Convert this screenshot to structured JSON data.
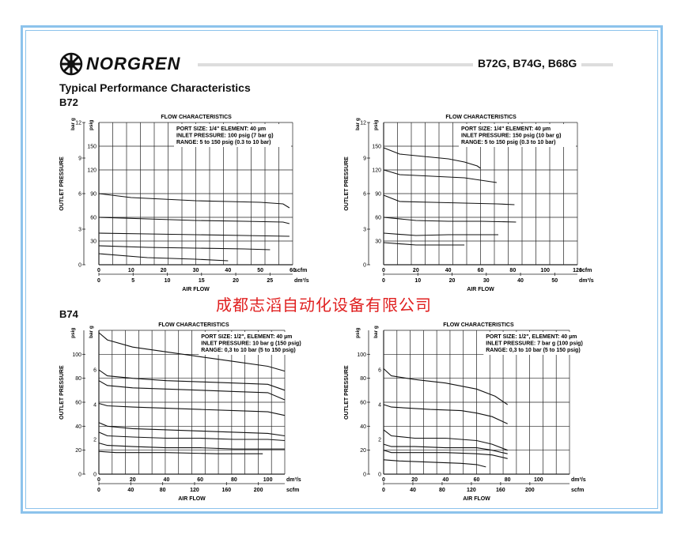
{
  "header": {
    "brand": "NORGREN",
    "models": "B72G, B74G, B68G",
    "title": "Typical Performance Characteristics"
  },
  "sections": {
    "b72": "B72",
    "b74": "B74"
  },
  "watermark": "成都志滔自动化设备有限公司",
  "colors": {
    "frame": "#8cc3ec",
    "watermark": "#e02020",
    "curve": "#111111"
  },
  "chart_data": [
    {
      "type": "line",
      "title": "FLOW CHARACTERISTICS",
      "annotation": [
        "PORT SIZE: 1/4\"      ELEMENT: 40 µm",
        "INLET PRESSURE: 100 psig (7 bar g)",
        "RANGE: 5 to 150 psig (0.3 to 10 bar)"
      ],
      "xlabel": "AIR FLOW",
      "ylabel": "OUTLET PRESSURE",
      "x_primary": {
        "unit": "scfm",
        "ticks": [
          "0",
          "10",
          "20",
          "30",
          "40",
          "50",
          "60"
        ],
        "max": 60
      },
      "x_secondary": {
        "unit": "dm³/s",
        "ticks": [
          "0",
          "5",
          "10",
          "15",
          "20",
          "25"
        ]
      },
      "y_left": {
        "unit": "bar g",
        "ticks": [
          "0",
          "3",
          "6",
          "9",
          "12"
        ],
        "max": 12
      },
      "y_right": {
        "unit": "psig",
        "ticks": [
          "30",
          "60",
          "90",
          "120",
          "150"
        ]
      },
      "ylim_psig": [
        0,
        180
      ],
      "series": [
        {
          "x": [
            0,
            10,
            20,
            30,
            40,
            50,
            57,
            59
          ],
          "y": [
            90,
            85,
            83,
            81,
            80,
            79,
            77,
            72
          ]
        },
        {
          "x": [
            0,
            15,
            30,
            45,
            57,
            59
          ],
          "y": [
            60,
            58,
            56,
            55,
            54,
            52
          ]
        },
        {
          "x": [
            0,
            15,
            30,
            45,
            59
          ],
          "y": [
            40,
            39,
            38,
            37,
            36
          ]
        },
        {
          "x": [
            0,
            15,
            30,
            45,
            53
          ],
          "y": [
            24,
            22,
            21,
            20,
            19
          ]
        },
        {
          "x": [
            0,
            15,
            30,
            40
          ],
          "y": [
            14,
            9,
            7,
            5
          ]
        }
      ]
    },
    {
      "type": "line",
      "title": "FLOW CHARACTERISTICS",
      "annotation": [
        "PORT SIZE: 1/4\"        ELEMENT: 40 µm",
        "INLET PRESSURE: 150 psig (10 bar g)",
        "RANGE: 5 to 150 psig (0.3 to 10 bar)"
      ],
      "xlabel": "AIR FLOW",
      "ylabel": "OUTLET PRESSURE",
      "x_primary": {
        "unit": "scfm",
        "ticks": [
          "0",
          "20",
          "40",
          "60",
          "80",
          "100",
          "120"
        ],
        "max": 120
      },
      "x_secondary": {
        "unit": "dm³/s",
        "ticks": [
          "0",
          "10",
          "20",
          "30",
          "40",
          "50"
        ]
      },
      "y_left": {
        "unit": "bar g",
        "ticks": [
          "0",
          "3",
          "6",
          "9",
          "12"
        ],
        "max": 12
      },
      "y_right": {
        "unit": "psig",
        "ticks": [
          "30",
          "60",
          "90",
          "120",
          "150"
        ]
      },
      "ylim_psig": [
        0,
        180
      ],
      "series": [
        {
          "x": [
            0,
            10,
            20,
            30,
            40,
            50,
            58,
            60
          ],
          "y": [
            148,
            140,
            138,
            136,
            134,
            130,
            125,
            122
          ]
        },
        {
          "x": [
            0,
            10,
            30,
            50,
            70
          ],
          "y": [
            120,
            114,
            112,
            110,
            104
          ]
        },
        {
          "x": [
            0,
            10,
            30,
            50,
            70,
            81
          ],
          "y": [
            88,
            80,
            79,
            78,
            77,
            76
          ]
        },
        {
          "x": [
            0,
            20,
            40,
            60,
            82
          ],
          "y": [
            60,
            56,
            55,
            55,
            54
          ]
        },
        {
          "x": [
            0,
            20,
            40,
            60,
            71
          ],
          "y": [
            40,
            37,
            38,
            38,
            38
          ]
        },
        {
          "x": [
            0,
            20,
            40,
            50
          ],
          "y": [
            28,
            25,
            25,
            25
          ]
        }
      ]
    },
    {
      "type": "line",
      "title": "FLOW CHARACTERISTICS",
      "annotation": [
        "PORT SIZE: 1/2\", ELEMENT: 40 µm",
        "INLET PRESSURE: 10 bar g (150 psig)",
        "RANGE: 0,3 to 10 bar (5 to 150 psig)"
      ],
      "xlabel": "AIR FLOW",
      "ylabel": "OUTLET PRESSURE",
      "x_primary": {
        "unit": "dm³/s",
        "ticks": [
          "0",
          "20",
          "40",
          "60",
          "80",
          "100"
        ],
        "max": 110
      },
      "x_secondary": {
        "unit": "scfm",
        "ticks": [
          "0",
          "40",
          "80",
          "120",
          "160",
          "200"
        ]
      },
      "y_left": {
        "unit": "psig",
        "ticks": [
          "0",
          "20",
          "40",
          "60",
          "80",
          "100"
        ],
        "max": 120
      },
      "y_right": {
        "unit": "bar g",
        "ticks": [
          "0",
          "2",
          "4",
          "6"
        ]
      },
      "series": [
        {
          "x": [
            0,
            5,
            20,
            40,
            60,
            80,
            100,
            110
          ],
          "y": [
            118,
            112,
            106,
            102,
            98,
            94,
            90,
            86
          ]
        },
        {
          "x": [
            0,
            5,
            20,
            40,
            60,
            80,
            100,
            110
          ],
          "y": [
            87,
            82,
            80,
            78,
            77,
            76,
            75,
            70
          ]
        },
        {
          "x": [
            0,
            5,
            20,
            40,
            60,
            80,
            100,
            110
          ],
          "y": [
            78,
            74,
            72,
            71,
            70,
            69,
            68,
            62
          ]
        },
        {
          "x": [
            0,
            5,
            20,
            40,
            60,
            80,
            100,
            110
          ],
          "y": [
            59,
            57,
            56,
            55,
            54,
            53,
            52,
            49
          ]
        },
        {
          "x": [
            0,
            5,
            20,
            40,
            60,
            80,
            100,
            110
          ],
          "y": [
            43,
            40,
            38,
            37,
            36,
            35,
            34,
            32
          ]
        },
        {
          "x": [
            0,
            5,
            20,
            40,
            60,
            80,
            100,
            110
          ],
          "y": [
            35,
            32,
            31,
            30,
            30,
            29,
            29,
            28
          ]
        },
        {
          "x": [
            0,
            5,
            20,
            40,
            60,
            80,
            100,
            110
          ],
          "y": [
            26,
            24,
            23,
            22,
            22,
            21,
            21,
            21
          ]
        },
        {
          "x": [
            0,
            10,
            40,
            70,
            97
          ],
          "y": [
            19,
            18,
            18,
            17,
            17
          ]
        }
      ]
    },
    {
      "type": "line",
      "title": "FLOW CHARACTERISTICS",
      "annotation": [
        "PORT SIZE: 1/2\", ELEMENT: 40 µm",
        "INLET PRESSURE: 7 bar g (100 psig)",
        "RANGE: 0,3 to 10 bar (5 to 150 psig)"
      ],
      "xlabel": "AIR FLOW",
      "ylabel": "OUTLET PRESSURE",
      "x_primary": {
        "unit": "dm³/s",
        "ticks": [
          "0",
          "20",
          "40",
          "60",
          "80",
          "100"
        ],
        "max": 120
      },
      "x_secondary": {
        "unit": "scfm",
        "ticks": [
          "0",
          "40",
          "80",
          "120",
          "160",
          "200"
        ]
      },
      "y_left": {
        "unit": "psig",
        "ticks": [
          "0",
          "20",
          "40",
          "60",
          "80",
          "100"
        ],
        "max": 120
      },
      "y_right": {
        "unit": "bar g",
        "ticks": [
          "0",
          "2",
          "4",
          "6"
        ]
      },
      "series": [
        {
          "x": [
            0,
            5,
            20,
            40,
            60,
            72,
            80
          ],
          "y": [
            88,
            82,
            79,
            76,
            71,
            65,
            58
          ]
        },
        {
          "x": [
            0,
            5,
            30,
            50,
            60,
            70,
            80
          ],
          "y": [
            58,
            56,
            54,
            53,
            51,
            48,
            42
          ]
        },
        {
          "x": [
            0,
            5,
            20,
            40,
            60,
            70,
            80
          ],
          "y": [
            37,
            32,
            30,
            30,
            28,
            25,
            20
          ]
        },
        {
          "x": [
            0,
            5,
            20,
            40,
            60,
            70,
            80
          ],
          "y": [
            25,
            23,
            23,
            22,
            22,
            20,
            17
          ]
        },
        {
          "x": [
            0,
            5,
            20,
            40,
            60,
            70,
            80
          ],
          "y": [
            20,
            18,
            18,
            18,
            17,
            16,
            13
          ]
        },
        {
          "x": [
            0,
            10,
            30,
            50,
            60,
            66
          ],
          "y": [
            12,
            11,
            10,
            9,
            8,
            6
          ]
        }
      ]
    }
  ]
}
